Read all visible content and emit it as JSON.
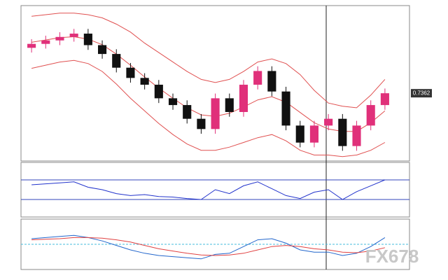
{
  "chart_data": [
    {
      "type": "candlestick",
      "up_color": "#e0307a",
      "down_color": "#111111",
      "open": [
        0.765,
        0.7675,
        0.7697,
        0.7719,
        0.774,
        0.7667,
        0.7611,
        0.7524,
        0.7459,
        0.7416,
        0.733,
        0.7287,
        0.72,
        0.7135,
        0.733,
        0.7243,
        0.7416,
        0.7503,
        0.7373,
        0.7157,
        0.7049,
        0.7157,
        0.72,
        0.7027,
        0.7157,
        0.7287
      ],
      "high": [
        0.7705,
        0.7727,
        0.7749,
        0.777,
        0.777,
        0.7697,
        0.7641,
        0.7554,
        0.7489,
        0.7446,
        0.736,
        0.7317,
        0.723,
        0.736,
        0.736,
        0.7446,
        0.7533,
        0.7533,
        0.7403,
        0.7187,
        0.7187,
        0.723,
        0.723,
        0.7187,
        0.7317,
        0.7392
      ],
      "low": [
        0.762,
        0.7645,
        0.7667,
        0.7689,
        0.7637,
        0.7581,
        0.7494,
        0.7429,
        0.7386,
        0.73,
        0.7257,
        0.717,
        0.7105,
        0.7105,
        0.7213,
        0.7213,
        0.7386,
        0.7343,
        0.7127,
        0.7019,
        0.7019,
        0.7127,
        0.6997,
        0.6997,
        0.7127,
        0.7257
      ],
      "close": [
        0.7675,
        0.7697,
        0.7719,
        0.774,
        0.7667,
        0.7611,
        0.7524,
        0.7459,
        0.7416,
        0.733,
        0.7287,
        0.72,
        0.7135,
        0.733,
        0.7243,
        0.7416,
        0.7503,
        0.7373,
        0.7157,
        0.7049,
        0.7157,
        0.72,
        0.7027,
        0.7157,
        0.7287,
        0.7362
      ],
      "series": [
        {
          "color": "#e05050",
          "values": [
            0.785,
            0.786,
            0.787,
            0.787,
            0.786,
            0.784,
            0.78,
            0.775,
            0.768,
            0.762,
            0.756,
            0.75,
            0.745,
            0.743,
            0.745,
            0.75,
            0.756,
            0.758,
            0.755,
            0.748,
            0.738,
            0.73,
            0.728,
            0.727,
            0.735,
            0.745
          ]
        },
        {
          "color": "#e05050",
          "values": [
            0.7685,
            0.77,
            0.7715,
            0.772,
            0.7705,
            0.767,
            0.761,
            0.754,
            0.7465,
            0.7395,
            0.733,
            0.727,
            0.7225,
            0.7215,
            0.7235,
            0.7275,
            0.732,
            0.734,
            0.7305,
            0.724,
            0.7175,
            0.7135,
            0.712,
            0.712,
            0.7175,
            0.725
          ]
        },
        {
          "color": "#e05050",
          "values": [
            0.752,
            0.754,
            0.756,
            0.757,
            0.755,
            0.75,
            0.742,
            0.733,
            0.725,
            0.717,
            0.71,
            0.704,
            0.7,
            0.7,
            0.702,
            0.705,
            0.708,
            0.71,
            0.706,
            0.7,
            0.697,
            0.697,
            0.696,
            0.697,
            0.7,
            0.705
          ]
        }
      ],
      "ylim": [
        0.695,
        0.79
      ]
    },
    {
      "type": "line",
      "series": [
        {
          "color": "#2233cc",
          "values": [
            60,
            62,
            64,
            66,
            55,
            50,
            42,
            38,
            40,
            36,
            35,
            32,
            30,
            50,
            42,
            58,
            66,
            52,
            38,
            32,
            45,
            50,
            30,
            46,
            58,
            70
          ]
        }
      ],
      "ylim": [
        0,
        100
      ],
      "levels": [
        70,
        30
      ],
      "level_color": "#3344bb"
    },
    {
      "type": "line",
      "series": [
        {
          "color": "#2266cc",
          "values": [
            0.005,
            0.006,
            0.007,
            0.008,
            0.006,
            0.003,
            -0.001,
            -0.005,
            -0.008,
            -0.01,
            -0.011,
            -0.012,
            -0.013,
            -0.009,
            -0.008,
            -0.002,
            0.004,
            0.005,
            0.001,
            -0.005,
            -0.007,
            -0.007,
            -0.01,
            -0.008,
            -0.002,
            0.006
          ]
        },
        {
          "color": "#e04040",
          "values": [
            0.004,
            0.0045,
            0.005,
            0.006,
            0.006,
            0.0055,
            0.004,
            0.002,
            -0.001,
            -0.004,
            -0.006,
            -0.008,
            -0.0095,
            -0.01,
            -0.0095,
            -0.008,
            -0.005,
            -0.002,
            -0.001,
            -0.002,
            -0.004,
            -0.005,
            -0.007,
            -0.0075,
            -0.006,
            -0.003
          ]
        }
      ],
      "ylim": [
        -0.02,
        0.02
      ],
      "levels": [
        0
      ],
      "level_color": "#44bbdd"
    }
  ],
  "watermark": "FX678"
}
